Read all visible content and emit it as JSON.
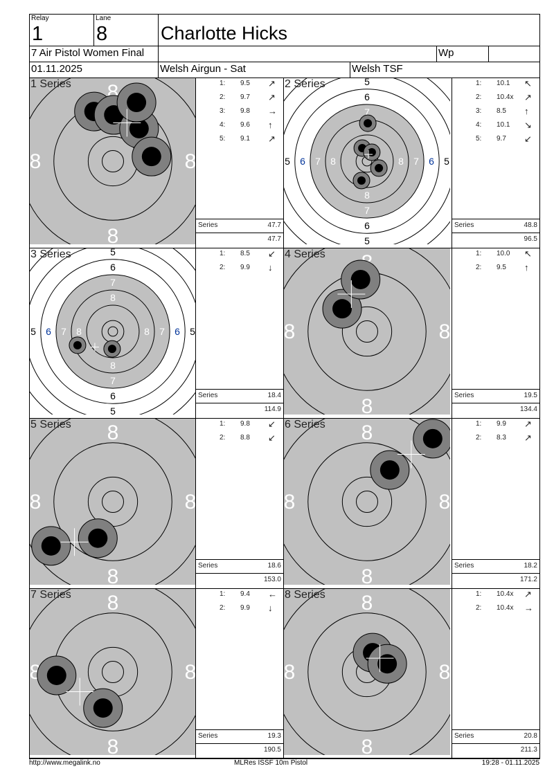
{
  "header": {
    "relay_label": "Relay",
    "relay": "1",
    "lane_label": "Lane",
    "lane": "8",
    "name": "Charlotte Hicks",
    "event": "7 Air Pistol Women Final",
    "weapon": "Wp",
    "date": "01.11.2025",
    "competition": "Welsh Airgun - Sat",
    "organizer": "Welsh TSF"
  },
  "colors": {
    "target_grey": "#c0c0c0",
    "shot_halo": "#808080",
    "shot": "#000000",
    "ring_label": "#ffffff"
  },
  "series_total_label": "Series",
  "series": [
    {
      "label": "1 Series",
      "view": "zoomed",
      "ring_labels": [
        "8"
      ],
      "total": "47.7",
      "cumulative": "47.7",
      "shots": [
        {
          "n": "1:",
          "score": "9.5",
          "dir": "up-right",
          "x": -4.4,
          "y": 11.6
        },
        {
          "n": "2:",
          "score": "9.7",
          "dir": "up-right",
          "x": 0.2,
          "y": 10.8
        },
        {
          "n": "3:",
          "score": "9.8",
          "dir": "right",
          "x": 6.1,
          "y": 7.6
        },
        {
          "n": "4:",
          "score": "9.6",
          "dir": "up",
          "x": 9.0,
          "y": 1.1
        },
        {
          "n": "5:",
          "score": "9.1",
          "dir": "up-right",
          "x": 5.5,
          "y": 13.7
        }
      ]
    },
    {
      "label": "2 Series",
      "view": "full",
      "ring_labels": [
        "8",
        "7",
        "6",
        "5"
      ],
      "total": "48.8",
      "cumulative": "96.5",
      "shots": [
        {
          "n": "1:",
          "score": "10.1",
          "dir": "up-left",
          "x": -2.5,
          "y": 6.9
        },
        {
          "n": "2:",
          "score": "10.4x",
          "dir": "up-right",
          "x": 2.5,
          "y": 4.7
        },
        {
          "n": "3:",
          "score": "8.5",
          "dir": "up",
          "x": 0.4,
          "y": 19.9
        },
        {
          "n": "4:",
          "score": "10.1",
          "dir": "down-right",
          "x": 6.2,
          "y": -3.6
        },
        {
          "n": "5:",
          "score": "9.7",
          "dir": "down-left",
          "x": -2.9,
          "y": -10.1
        }
      ]
    },
    {
      "label": "3 Series",
      "view": "full",
      "ring_labels": [
        "8",
        "7",
        "6",
        "5"
      ],
      "total": "18.4",
      "cumulative": "114.9",
      "shots": [
        {
          "n": "1:",
          "score": "8.5",
          "dir": "down-left",
          "x": -18.5,
          "y": -7.2
        },
        {
          "n": "2:",
          "score": "9.9",
          "dir": "down",
          "x": -0.4,
          "y": -9.1
        }
      ]
    },
    {
      "label": "4 Series",
      "view": "zoomed",
      "ring_labels": [
        "8"
      ],
      "total": "19.5",
      "cumulative": "134.4",
      "shots": [
        {
          "n": "1:",
          "score": "10.0",
          "dir": "up-left",
          "x": -5.8,
          "y": 5.3
        },
        {
          "n": "2:",
          "score": "9.5",
          "dir": "up",
          "x": -1.5,
          "y": 12.1
        }
      ]
    },
    {
      "label": "5 Series",
      "view": "zoomed",
      "ring_labels": [
        "8"
      ],
      "total": "18.6",
      "cumulative": "153.0",
      "shots": [
        {
          "n": "1:",
          "score": "9.8",
          "dir": "down-left",
          "x": -3.5,
          "y": -8.5
        },
        {
          "n": "2:",
          "score": "8.8",
          "dir": "down-left",
          "x": -14.4,
          "y": -10.3
        }
      ]
    },
    {
      "label": "6 Series",
      "view": "zoomed",
      "ring_labels": [
        "8"
      ],
      "total": "18.2",
      "cumulative": "171.2",
      "shots": [
        {
          "n": "1:",
          "score": "9.9",
          "dir": "up-right",
          "x": 5.3,
          "y": 7.4
        },
        {
          "n": "2:",
          "score": "8.3",
          "dir": "up-right",
          "x": 15.3,
          "y": 14.7
        }
      ]
    },
    {
      "label": "7 Series",
      "view": "zoomed",
      "ring_labels": [
        "8"
      ],
      "total": "19.3",
      "cumulative": "190.5",
      "shots": [
        {
          "n": "1:",
          "score": "9.4",
          "dir": "left",
          "x": -13.1,
          "y": -0.8
        },
        {
          "n": "2:",
          "score": "9.9",
          "dir": "down",
          "x": -2.3,
          "y": -8.4
        }
      ]
    },
    {
      "label": "8 Series",
      "view": "zoomed",
      "ring_labels": [
        "8"
      ],
      "total": "20.8",
      "cumulative": "211.3",
      "shots": [
        {
          "n": "1:",
          "score": "10.4x",
          "dir": "up-right",
          "x": 1.3,
          "y": 4.5
        },
        {
          "n": "2:",
          "score": "10.4x",
          "dir": "right",
          "x": 4.7,
          "y": 1.9
        }
      ]
    }
  ],
  "footer": {
    "url": "http://www.megalink.no",
    "software": "MLRes ISSF 10m Pistol",
    "timestamp": "19:28 - 01.11.2025"
  }
}
